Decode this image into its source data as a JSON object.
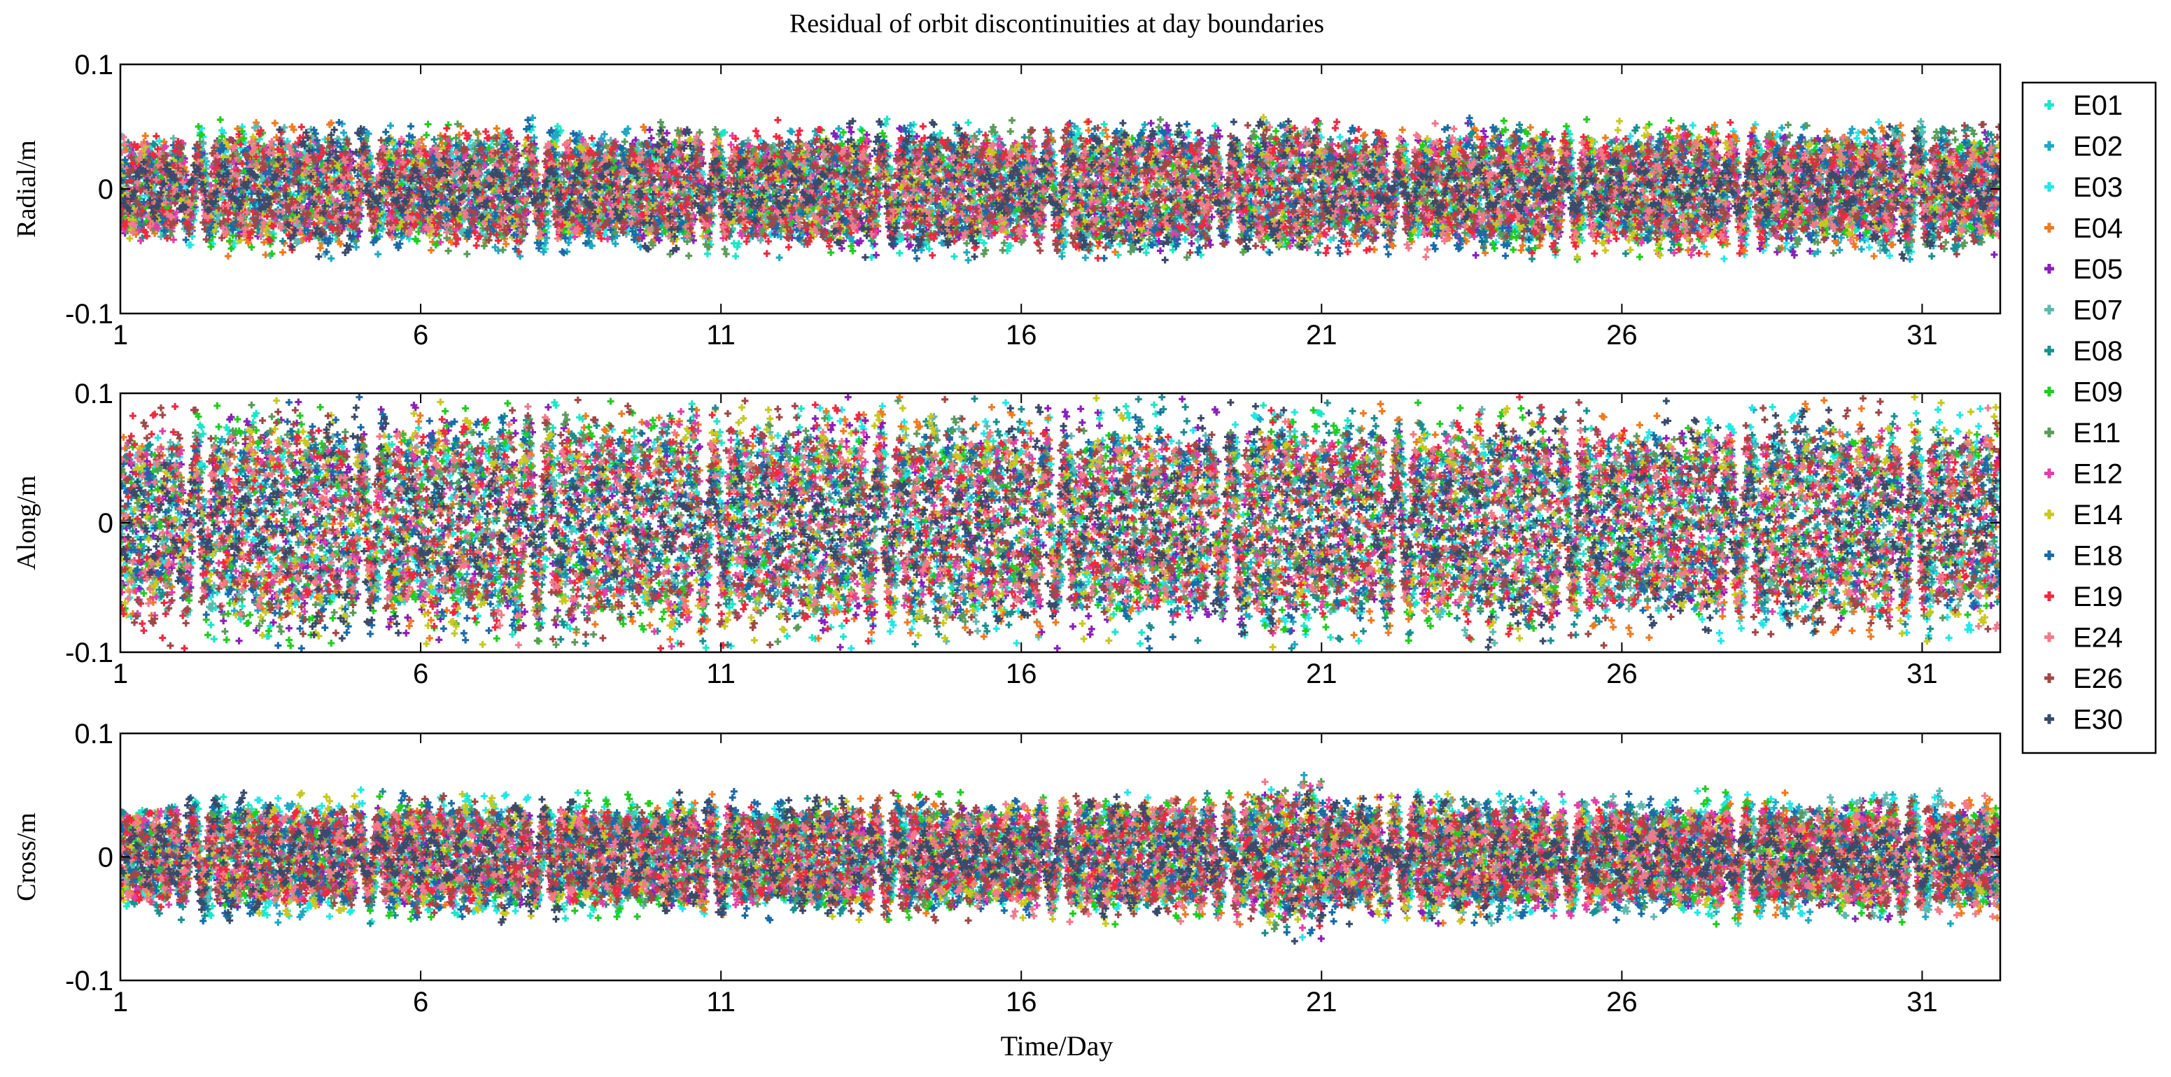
{
  "chart_data": {
    "type": "scatter",
    "title": "Residual of orbit discontinuities at day boundaries",
    "xlabel": "Time/Day",
    "xlim": [
      1,
      32.3
    ],
    "xticks": [
      1,
      6,
      11,
      16,
      21,
      26,
      31
    ],
    "panels": [
      {
        "ylabel": "Radial/m",
        "ylim": [
          -0.1,
          0.1
        ],
        "yticks": [
          -0.1,
          0,
          0.1
        ],
        "ytick_labels": [
          "-0.1",
          "0",
          "0.1"
        ],
        "amplitude": 0.052,
        "anomaly": {
          "x_start": 20.0,
          "x_end": 21.0,
          "amplitude": 0.055
        }
      },
      {
        "ylabel": "Along/m",
        "ylim": [
          -0.1,
          0.1
        ],
        "yticks": [
          -0.1,
          0,
          0.1
        ],
        "ytick_labels": [
          "-0.1",
          "0",
          "0.1"
        ],
        "amplitude": 0.09,
        "anomaly": {
          "x_start": 20.0,
          "x_end": 20.6,
          "amplitude": 0.092
        }
      },
      {
        "ylabel": "Cross/m",
        "ylim": [
          -0.1,
          0.1
        ],
        "yticks": [
          -0.1,
          0,
          0.1
        ],
        "ytick_labels": [
          "-0.1",
          "0",
          "0.1"
        ],
        "amplitude": 0.05,
        "anomaly": {
          "x_start": 20.0,
          "x_end": 21.0,
          "amplitude": 0.066
        }
      }
    ],
    "series": [
      {
        "name": "E01",
        "color": "#19e8c8"
      },
      {
        "name": "E02",
        "color": "#1fa8c4"
      },
      {
        "name": "E03",
        "color": "#20e8e8"
      },
      {
        "name": "E04",
        "color": "#f07a20"
      },
      {
        "name": "E05",
        "color": "#8a20b8"
      },
      {
        "name": "E07",
        "color": "#5fb8b0"
      },
      {
        "name": "E08",
        "color": "#1a8f8f"
      },
      {
        "name": "E09",
        "color": "#22cc22"
      },
      {
        "name": "E11",
        "color": "#5a9a5a"
      },
      {
        "name": "E12",
        "color": "#e040a8"
      },
      {
        "name": "E14",
        "color": "#c8c820"
      },
      {
        "name": "E18",
        "color": "#1a6aa8"
      },
      {
        "name": "E19",
        "color": "#f02840"
      },
      {
        "name": "E24",
        "color": "#f27a8a"
      },
      {
        "name": "E26",
        "color": "#a04848"
      },
      {
        "name": "E30",
        "color": "#3a4a6a"
      }
    ]
  }
}
